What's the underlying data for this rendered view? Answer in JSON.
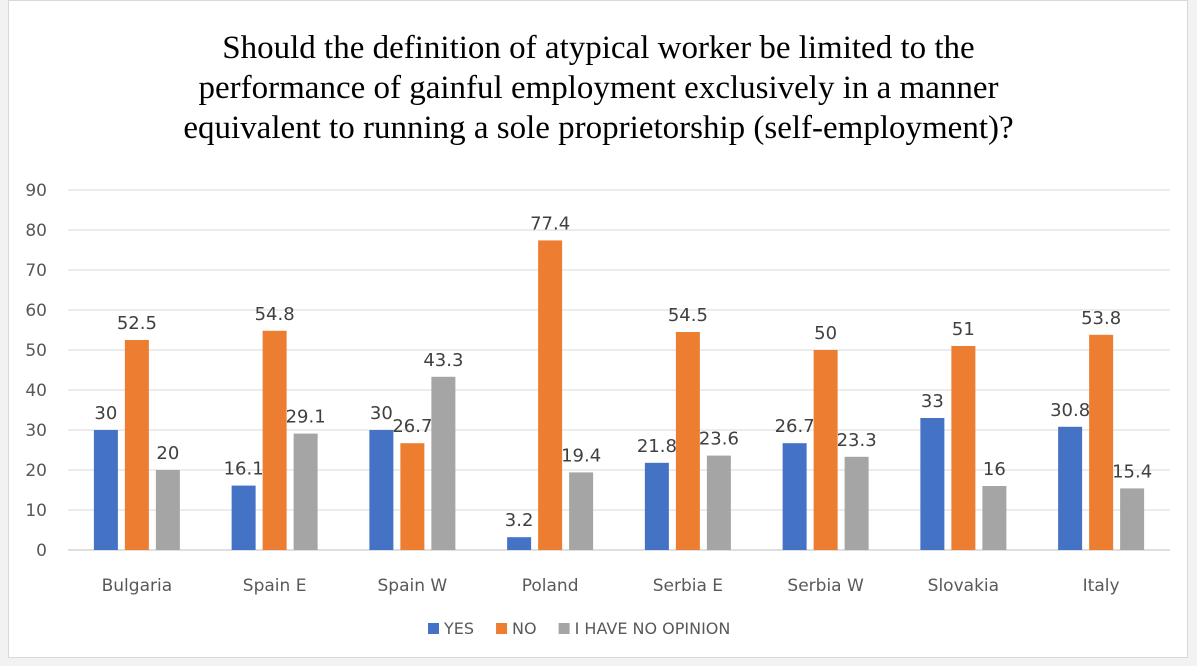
{
  "chart_data": {
    "type": "bar",
    "title": "Should the definition of atypical worker be limited to the\nperformance of gainful employment exclusively in a manner\nequivalent to running a sole proprietorship (self-employment)?",
    "categories": [
      "Bulgaria",
      "Spain E",
      "Spain W",
      "Poland",
      "Serbia E",
      "Serbia W",
      "Slovakia",
      "Italy"
    ],
    "series": [
      {
        "name": "YES",
        "color": "#4472c4",
        "values": [
          30,
          16.1,
          30,
          3.2,
          21.8,
          26.7,
          33,
          30.8
        ]
      },
      {
        "name": "NO",
        "color": "#ed7d31",
        "values": [
          52.5,
          54.8,
          26.7,
          77.4,
          54.5,
          50,
          51,
          53.8
        ]
      },
      {
        "name": "I HAVE NO OPINION",
        "color": "#a5a5a5",
        "values": [
          20,
          29.1,
          43.3,
          19.4,
          23.6,
          23.3,
          16,
          15.4
        ]
      }
    ],
    "ylim": [
      0,
      90
    ],
    "yticks": [
      0,
      10,
      20,
      30,
      40,
      50,
      60,
      70,
      80,
      90
    ],
    "grid": true,
    "legend": "bottom",
    "xlabel": "",
    "ylabel": ""
  }
}
